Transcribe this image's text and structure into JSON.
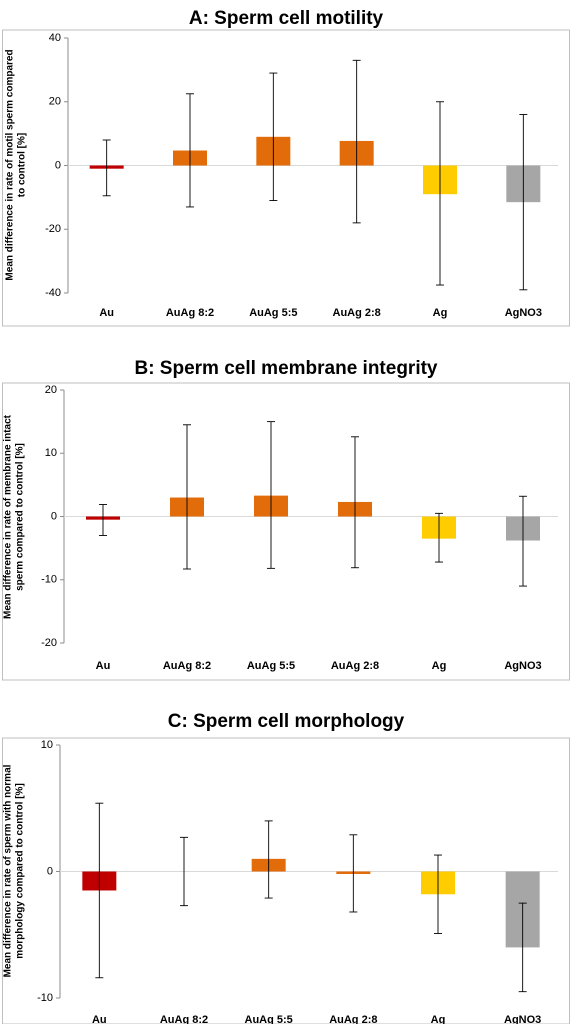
{
  "chart_data": [
    {
      "type": "bar",
      "title": "A: Sperm cell motility",
      "ylabel": [
        "Mean difference in rate of motil sperm compared",
        "to control [%]"
      ],
      "categories": [
        "Au",
        "AuAg 8:2",
        "AuAg 5:5",
        "AuAg 2:8",
        "Ag",
        "AgNO3"
      ],
      "values": [
        -1,
        4.7,
        9,
        7.7,
        -9,
        -11.5
      ],
      "error_low": [
        -9.5,
        -13,
        -11,
        -18,
        -37.5,
        -39
      ],
      "error_high": [
        8,
        22.5,
        29,
        33,
        20,
        16
      ],
      "colors": [
        "#c00000",
        "#e36c0a",
        "#e36c0a",
        "#e36c0a",
        "#ffcc00",
        "#a6a6a6"
      ],
      "ylim": [
        -40,
        40
      ],
      "yticks": [
        40,
        20,
        0,
        -20,
        -40
      ]
    },
    {
      "type": "bar",
      "title": "B: Sperm cell membrane integrity",
      "ylabel": [
        "Mean difference in rate of membrane intact",
        "sperm compared to control [%]"
      ],
      "categories": [
        "Au",
        "AuAg 8:2",
        "AuAg 5:5",
        "AuAg 2:8",
        "Ag",
        "AgNO3"
      ],
      "values": [
        -0.5,
        3,
        3.3,
        2.3,
        -3.5,
        -3.8
      ],
      "error_low": [
        -3,
        -8.3,
        -8.2,
        -8.1,
        -7.2,
        -11
      ],
      "error_high": [
        1.9,
        14.5,
        15,
        12.6,
        0.5,
        3.2
      ],
      "colors": [
        "#c00000",
        "#e36c0a",
        "#e36c0a",
        "#e36c0a",
        "#ffcc00",
        "#a6a6a6"
      ],
      "ylim": [
        -20,
        20
      ],
      "yticks": [
        20,
        10,
        0,
        -10,
        -20
      ]
    },
    {
      "type": "bar",
      "title": "C: Sperm cell morphology",
      "ylabel": [
        "Mean difference in rate of sperm with normal",
        "morphology compared to control [%]"
      ],
      "categories": [
        "Au",
        "AuAg 8:2",
        "AuAg 5:5",
        "AuAg 2:8",
        "Ag",
        "AgNO3"
      ],
      "values": [
        -1.5,
        0,
        1,
        -0.1,
        -1.8,
        -6
      ],
      "error_low": [
        -8.4,
        -2.7,
        -2.1,
        -3.2,
        -4.9,
        -9.5
      ],
      "error_high": [
        5.4,
        2.7,
        4,
        2.9,
        1.3,
        -2.5
      ],
      "colors": [
        "#c00000",
        "#e36c0a",
        "#e36c0a",
        "#e36c0a",
        "#ffcc00",
        "#a6a6a6"
      ],
      "ylim": [
        -10,
        10
      ],
      "yticks": [
        10,
        0,
        -10
      ]
    }
  ]
}
